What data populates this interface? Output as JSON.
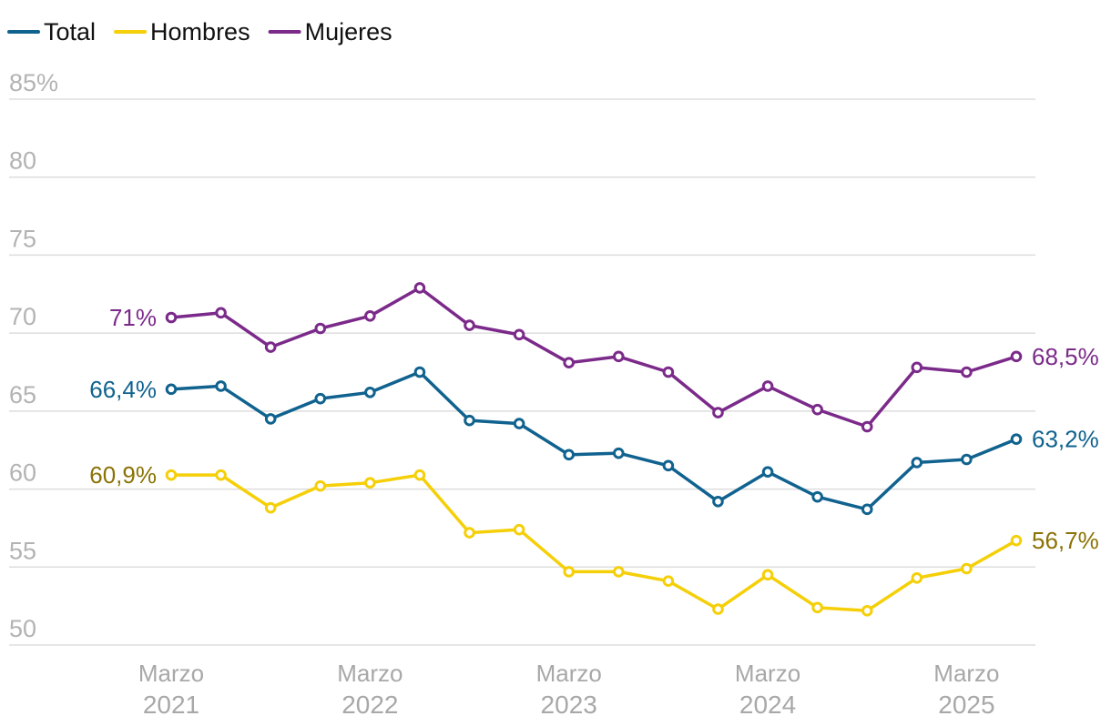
{
  "chart_data": {
    "type": "line",
    "title": "",
    "xlabel": "",
    "ylabel": "",
    "ylim": [
      50,
      85
    ],
    "yticks": [
      {
        "value": 85,
        "label": "85%"
      },
      {
        "value": 80,
        "label": "80"
      },
      {
        "value": 75,
        "label": "75"
      },
      {
        "value": 70,
        "label": "70"
      },
      {
        "value": 65,
        "label": "65"
      },
      {
        "value": 60,
        "label": "60"
      },
      {
        "value": 55,
        "label": "55"
      },
      {
        "value": 50,
        "label": "50"
      }
    ],
    "x_count": 18,
    "xticks": [
      {
        "index": 0,
        "month": "Marzo",
        "year": "2021"
      },
      {
        "index": 4,
        "month": "Marzo",
        "year": "2022"
      },
      {
        "index": 8,
        "month": "Marzo",
        "year": "2023"
      },
      {
        "index": 12,
        "month": "Marzo",
        "year": "2024"
      },
      {
        "index": 16,
        "month": "Marzo",
        "year": "2025"
      }
    ],
    "legend_position": "top-left",
    "grid": true,
    "series": [
      {
        "name": "Total",
        "color": "#10628f",
        "label_color": "#10628f",
        "values": [
          66.4,
          66.6,
          64.5,
          65.8,
          66.2,
          67.5,
          64.4,
          64.2,
          62.2,
          62.3,
          61.5,
          59.2,
          61.1,
          59.5,
          58.7,
          61.7,
          61.9,
          63.2
        ],
        "first_label": "66,4%",
        "last_label": "63,2%"
      },
      {
        "name": "Hombres",
        "color": "#f5cf08",
        "label_color": "#8b7205",
        "values": [
          60.9,
          60.9,
          58.8,
          60.2,
          60.4,
          60.9,
          57.2,
          57.4,
          54.7,
          54.7,
          54.1,
          52.3,
          54.5,
          52.4,
          52.2,
          54.3,
          54.9,
          56.7
        ],
        "first_label": "60,9%",
        "last_label": "56,7%"
      },
      {
        "name": "Mujeres",
        "color": "#7b2a8a",
        "label_color": "#7b2a8a",
        "values": [
          71.0,
          71.3,
          69.1,
          70.3,
          71.1,
          72.9,
          70.5,
          69.9,
          68.1,
          68.5,
          67.5,
          64.9,
          66.6,
          65.1,
          64.0,
          67.8,
          67.5,
          68.5
        ],
        "first_label": "71%",
        "last_label": "68,5%"
      }
    ]
  }
}
